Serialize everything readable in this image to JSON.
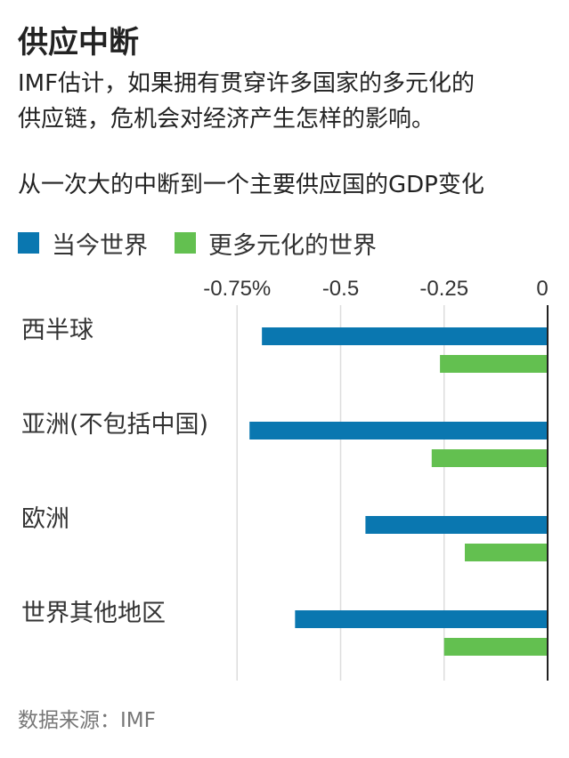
{
  "title": "供应中断",
  "subtitle_lines": [
    "IMF估计，如果拥有贯穿许多国家的多元化的",
    "供应链，危机会对经济产生怎样的影响。"
  ],
  "chart_heading": "从一次大的中断到一个主要供应国的GDP变化",
  "legend": [
    {
      "label": "当今世界",
      "color": "#0a77b0"
    },
    {
      "label": "更多元化的世界",
      "color": "#63c050"
    }
  ],
  "source": "数据来源：IMF",
  "chart_data": {
    "type": "bar",
    "orientation": "horizontal",
    "title": "从一次大的中断到一个主要供应国的GDP变化",
    "categories": [
      "西半球",
      "亚洲(不包括中国)",
      "欧洲",
      "世界其他地区"
    ],
    "series": [
      {
        "name": "当今世界",
        "color": "#0a77b0",
        "values": [
          -0.69,
          -0.72,
          -0.44,
          -0.61
        ]
      },
      {
        "name": "更多元化的世界",
        "color": "#63c050",
        "values": [
          -0.26,
          -0.28,
          -0.2,
          -0.25
        ]
      }
    ],
    "xlim": [
      -0.8,
      0
    ],
    "xticks": [
      -0.75,
      -0.5,
      -0.25,
      0
    ],
    "xtick_labels": [
      "-0.75%",
      "-0.5",
      "-0.25",
      "0"
    ],
    "grid": true,
    "legend_position": "top"
  }
}
